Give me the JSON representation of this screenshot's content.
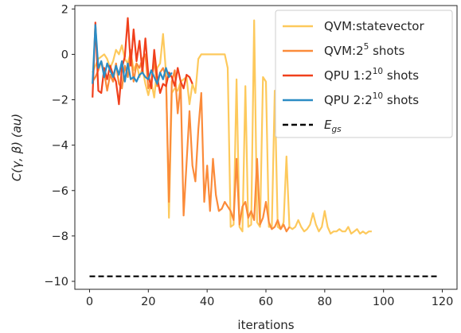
{
  "chart_data": {
    "type": "line",
    "xlabel": "iterations",
    "ylabel": "C(γ, β) (au)",
    "xlim": [
      -5,
      125
    ],
    "ylim": [
      -10.35,
      2.15
    ],
    "xticks": [
      0,
      20,
      40,
      60,
      80,
      100,
      120
    ],
    "yticks": [
      2,
      0,
      -2,
      -4,
      -6,
      -8,
      -10
    ],
    "xtick_labels": [
      "0",
      "20",
      "40",
      "60",
      "80",
      "100",
      "120"
    ],
    "ytick_labels": [
      "2",
      "0",
      "−2",
      "−4",
      "−6",
      "−8",
      "−10"
    ],
    "legend_position": "top-right",
    "series": [
      {
        "name": "QVM:statevector",
        "name_base": "QVM:statevector",
        "name_sup": "",
        "name_suffix": "",
        "color": "#fdc95c",
        "dash": "",
        "x": [
          1,
          2,
          3,
          4,
          5,
          6,
          7,
          8,
          9,
          10,
          11,
          12,
          13,
          14,
          15,
          16,
          17,
          18,
          19,
          20,
          21,
          22,
          23,
          24,
          25,
          26,
          27,
          28,
          29,
          30,
          31,
          32,
          33,
          34,
          35,
          36,
          37,
          38,
          39,
          40,
          41,
          42,
          43,
          44,
          45,
          46,
          47,
          48,
          49,
          50,
          51,
          52,
          53,
          54,
          55,
          56,
          57,
          58,
          59,
          60,
          61,
          62,
          63,
          64,
          65,
          66,
          67,
          68,
          69,
          70,
          71,
          72,
          73,
          74,
          75,
          76,
          77,
          78,
          79,
          80,
          81,
          82,
          83,
          84,
          85,
          86,
          87,
          88,
          89,
          90,
          91,
          92,
          93,
          94,
          95,
          96
        ],
        "y": [
          -0.8,
          -0.5,
          -0.2,
          -0.1,
          0.0,
          -0.2,
          -0.6,
          -0.3,
          0.2,
          0.0,
          0.4,
          -0.2,
          -0.4,
          0.1,
          -0.7,
          -0.4,
          -1.0,
          -0.6,
          -1.3,
          -1.8,
          -1.2,
          -1.9,
          -0.6,
          -0.4,
          0.9,
          -0.8,
          -7.2,
          -1.7,
          -1.5,
          -1.6,
          -1.2,
          -1.1,
          -1.0,
          -2.2,
          -1.3,
          -1.7,
          -0.2,
          0.0,
          0.0,
          0.0,
          0.0,
          0.0,
          0.0,
          0.0,
          0.0,
          0.0,
          -0.6,
          -7.6,
          -7.5,
          -1.1,
          -7.6,
          -7.8,
          -1.4,
          -7.6,
          -7.5,
          1.5,
          -7.4,
          -7.6,
          -1.0,
          -1.2,
          -7.6,
          -7.6,
          -1.6,
          -7.6,
          -7.7,
          -7.4,
          -4.5,
          -7.6,
          -7.7,
          -7.6,
          -7.3,
          -7.6,
          -7.8,
          -7.7,
          -7.5,
          -7.0,
          -7.5,
          -7.8,
          -7.6,
          -6.9,
          -7.6,
          -7.9,
          -7.8,
          -7.8,
          -7.7,
          -7.8,
          -7.8,
          -7.6,
          -7.9,
          -7.8,
          -7.7,
          -7.9,
          -7.8,
          -7.9,
          -7.8,
          -7.8
        ]
      },
      {
        "name": "QVM:2⁵ shots",
        "name_base": "QVM:2",
        "name_sup": "5",
        "name_suffix": " shots",
        "color": "#fb8b3a",
        "dash": "",
        "x": [
          1,
          2,
          3,
          4,
          5,
          6,
          7,
          8,
          9,
          10,
          11,
          12,
          13,
          14,
          15,
          16,
          17,
          18,
          19,
          20,
          21,
          22,
          23,
          24,
          25,
          26,
          27,
          28,
          29,
          30,
          31,
          32,
          33,
          34,
          35,
          36,
          37,
          38,
          39,
          40,
          41,
          42,
          43,
          44,
          45,
          46,
          47,
          48,
          49,
          50,
          51,
          52,
          53,
          54,
          55,
          56,
          57,
          58,
          59,
          60,
          61,
          62,
          63,
          64,
          65,
          66,
          67,
          68
        ],
        "y": [
          -1.2,
          -1.0,
          -0.7,
          -0.3,
          -0.8,
          -1.6,
          -0.9,
          -1.2,
          -0.4,
          -1.3,
          -1.5,
          -0.5,
          -1.0,
          0.2,
          -1.2,
          -0.4,
          -0.6,
          -0.2,
          0.0,
          -1.5,
          -1.2,
          -0.3,
          -1.4,
          -0.8,
          -0.6,
          -1.0,
          -6.5,
          -1.2,
          -0.7,
          -2.6,
          -1.3,
          -7.1,
          -4.8,
          -2.5,
          -4.9,
          -5.6,
          -3.3,
          -1.7,
          -6.5,
          -4.9,
          -6.9,
          -4.6,
          -6.2,
          -6.9,
          -6.8,
          -6.5,
          -6.7,
          -6.9,
          -7.3,
          -4.6,
          -7.5,
          -6.7,
          -6.5,
          -7.2,
          -6.9,
          -7.3,
          -4.6,
          -7.5,
          -7.2,
          -6.5,
          -7.4,
          -7.7,
          -7.6,
          -7.3,
          -7.7,
          -7.5,
          -7.8,
          -7.6
        ]
      },
      {
        "name": "QPU 1:2¹⁰ shots",
        "name_base": "QPU 1:2",
        "name_sup": "10",
        "name_suffix": " shots",
        "color": "#f0401c",
        "dash": "",
        "x": [
          1,
          2,
          3,
          4,
          5,
          6,
          7,
          8,
          9,
          10,
          11,
          12,
          13,
          14,
          15,
          16,
          17,
          18,
          19,
          20,
          21,
          22,
          23,
          24,
          25,
          26,
          27,
          28,
          29,
          30,
          31,
          32,
          33,
          34,
          35
        ],
        "y": [
          -1.9,
          1.4,
          -1.6,
          -1.7,
          -0.6,
          -1.1,
          -0.5,
          -0.9,
          -1.2,
          -2.2,
          -0.6,
          -0.1,
          1.6,
          -0.5,
          1.1,
          -0.3,
          0.6,
          -0.8,
          0.7,
          -0.9,
          -1.5,
          0.2,
          -1.0,
          -1.7,
          -1.3,
          -1.4,
          -0.8,
          -1.0,
          -1.4,
          -0.6,
          -1.2,
          -1.5,
          -0.9,
          -1.0,
          -1.3
        ]
      },
      {
        "name": "QPU 2:2¹⁰ shots",
        "name_base": "QPU 2:2",
        "name_sup": "10",
        "name_suffix": " shots",
        "color": "#2b8cc4",
        "dash": "",
        "x": [
          1,
          2,
          3,
          4,
          5,
          6,
          7,
          8,
          9,
          10,
          11,
          12,
          13,
          14,
          15,
          16,
          17,
          18,
          19,
          20,
          21,
          22,
          23,
          24,
          25,
          26,
          27,
          28
        ],
        "y": [
          -1.3,
          1.3,
          -0.6,
          -0.3,
          -1.0,
          -0.4,
          -0.7,
          -1.0,
          -0.5,
          -0.9,
          -0.3,
          -1.2,
          -0.4,
          -1.1,
          -1.0,
          -1.2,
          -0.9,
          -0.8,
          -1.0,
          -1.1,
          -0.7,
          -1.0,
          -1.3,
          -0.8,
          -1.1,
          -0.6,
          -1.0,
          -0.8
        ]
      },
      {
        "name": "Egs",
        "name_base": "E",
        "name_sub": "gs",
        "color": "#000000",
        "dash": "7,4",
        "x": [
          0,
          119
        ],
        "y": [
          -9.78,
          -9.78
        ]
      }
    ]
  }
}
